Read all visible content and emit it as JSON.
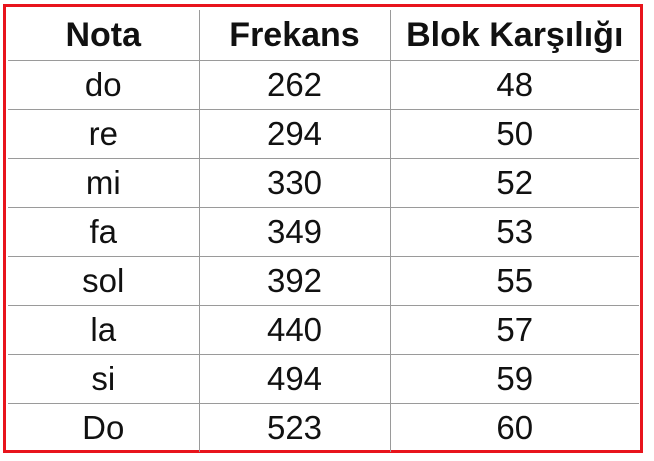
{
  "table": {
    "headers": [
      "Nota",
      "Frekans",
      "Blok Karşılığı"
    ],
    "rows": [
      [
        "do",
        "262",
        "48"
      ],
      [
        "re",
        "294",
        "50"
      ],
      [
        "mi",
        "330",
        "52"
      ],
      [
        "fa",
        "349",
        "53"
      ],
      [
        "sol",
        "392",
        "55"
      ],
      [
        "la",
        "440",
        "57"
      ],
      [
        "si",
        "494",
        "59"
      ],
      [
        "Do",
        "523",
        "60"
      ]
    ]
  },
  "colors": {
    "frame_border": "#e8141c",
    "grid_lines": "#9a9a9a",
    "text": "#111111",
    "background": "#ffffff"
  }
}
